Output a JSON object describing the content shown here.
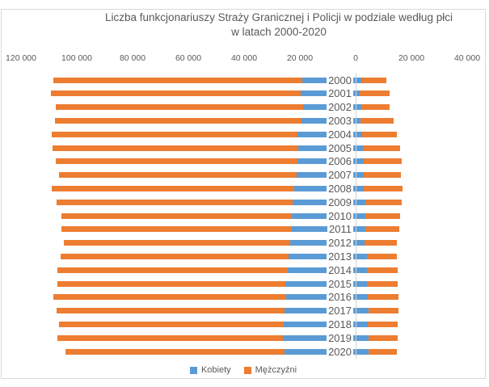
{
  "title": {
    "line1": "Liczba funkcjonariuszy Straży Granicznej i Policji w podziale według płci",
    "line2": "w latach 2000-2020"
  },
  "colors": {
    "kobiety": "#5B9BD5",
    "mezczyzni": "#ED7D31",
    "axis_line": "#D2D2D2",
    "frame_border": "#D9D9D9",
    "title_text": "#595959",
    "tick_text": "#595959",
    "year_text": "#595959"
  },
  "legend": {
    "items": [
      {
        "label": "Kobiety",
        "color": "#5B9BD5"
      },
      {
        "label": "Mężczyźni",
        "color": "#ED7D31"
      }
    ]
  },
  "chart_data": {
    "type": "bar",
    "subtype": "diverging-horizontal-stacked",
    "title": "Liczba funkcjonariuszy Straży Granicznej i Policji w podziale według płci w latach 2000-2020",
    "legend_entries": [
      "Kobiety",
      "Mężczyźni"
    ],
    "legend_position": "bottom",
    "grid": false,
    "x_axis": {
      "tick_labels": [
        "120 000",
        "100 000",
        "80 000",
        "60 000",
        "40 000",
        "20 000",
        "0",
        "20 000",
        "40 000"
      ],
      "tick_values": [
        -120000,
        -100000,
        -80000,
        -60000,
        -40000,
        -20000,
        0,
        20000,
        40000
      ]
    },
    "categories": [
      2000,
      2001,
      2002,
      2003,
      2004,
      2005,
      2006,
      2007,
      2008,
      2009,
      2010,
      2011,
      2012,
      2013,
      2014,
      2015,
      2016,
      2017,
      2018,
      2019,
      2020
    ],
    "sides": {
      "left": {
        "series": [
          {
            "name": "Kobiety",
            "values": [
              19200,
              19700,
              18900,
              19500,
              20900,
              20600,
              20800,
              21200,
              22100,
              22500,
              23000,
              23000,
              23500,
              24000,
              24300,
              25100,
              25000,
              25400,
              25900,
              26200,
              25600
            ]
          },
          {
            "name": "Mężczyźni",
            "values": [
              89200,
              89500,
              88500,
              88200,
              88000,
              88000,
              86600,
              85300,
              86800,
              84700,
              82500,
              82500,
              81200,
              81800,
              82700,
              81800,
              83300,
              81800,
              80400,
              80800,
              78500
            ]
          }
        ]
      },
      "right": {
        "series": [
          {
            "name": "Kobiety",
            "values": [
              1600,
              1200,
              1700,
              1400,
              2000,
              2200,
              2600,
              2700,
              2600,
              3200,
              3200,
              3200,
              3000,
              3700,
              3700,
              3900,
              4000,
              4300,
              4100,
              4300,
              4300
            ]
          },
          {
            "name": "Mężczyźni",
            "values": [
              9200,
              10700,
              10200,
              11800,
              12500,
              13400,
              13600,
              13300,
              13900,
              12900,
              12400,
              12300,
              11500,
              10700,
              11100,
              10900,
              11000,
              10700,
              10800,
              10600,
              10200
            ]
          }
        ]
      }
    }
  }
}
